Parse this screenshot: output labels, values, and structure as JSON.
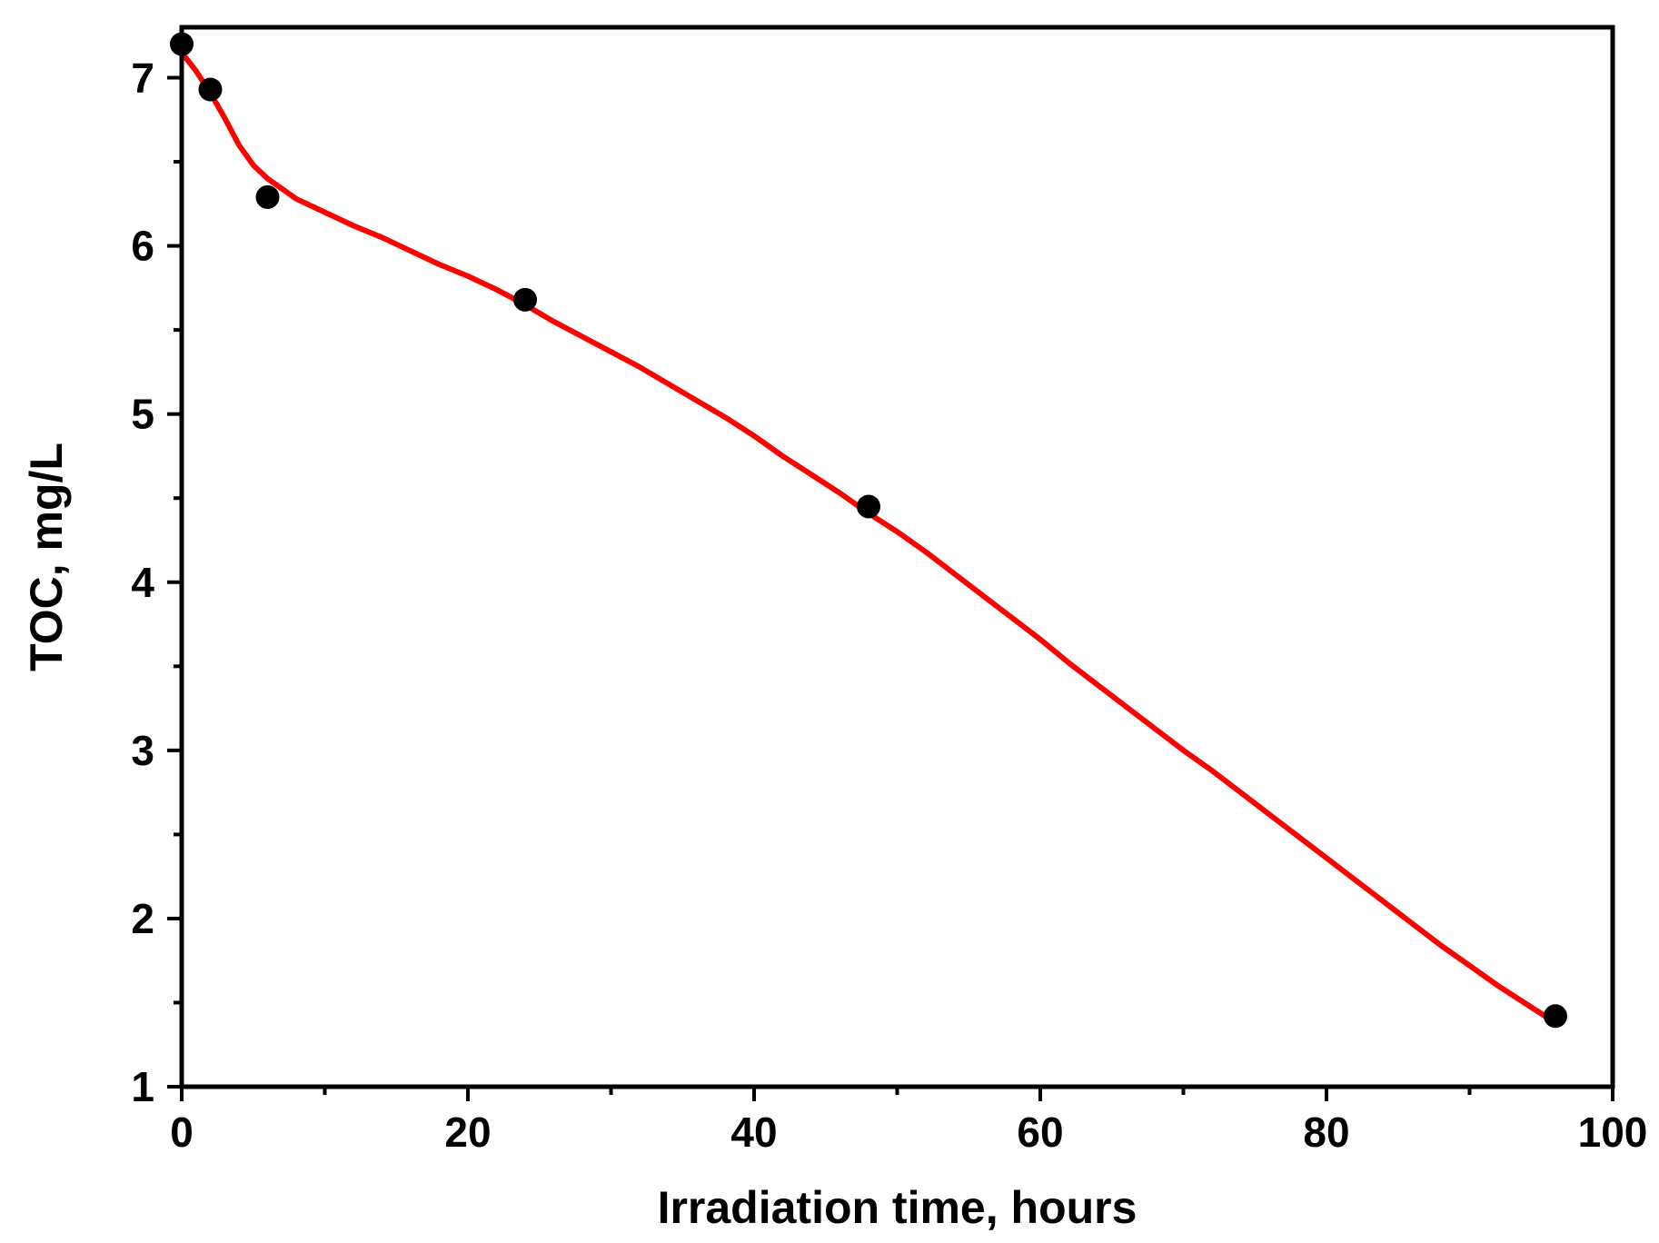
{
  "chart_data": {
    "type": "scatter",
    "title": "",
    "xlabel": "Irradiation time, hours",
    "ylabel": "TOC, mg/L",
    "xlim": [
      0,
      100
    ],
    "ylim": [
      1,
      7.3
    ],
    "x_ticks": [
      0,
      20,
      40,
      60,
      80,
      100
    ],
    "x_tick_labels": [
      "0",
      "20",
      "40",
      "60",
      "80",
      "100"
    ],
    "x_minor_ticks": [
      10,
      30,
      50,
      70,
      90
    ],
    "y_ticks": [
      1,
      2,
      3,
      4,
      5,
      6,
      7
    ],
    "y_tick_labels": [
      "1",
      "2",
      "3",
      "4",
      "5",
      "6",
      "7"
    ],
    "y_minor_ticks": [
      1.5,
      2.5,
      3.5,
      4.5,
      5.5,
      6.5
    ],
    "grid": false,
    "legend": "none",
    "series": [
      {
        "kind": "points",
        "color": "#000000",
        "x": [
          0,
          2,
          6,
          24,
          48,
          96
        ],
        "y": [
          7.2,
          6.93,
          6.29,
          5.68,
          4.45,
          1.42
        ]
      },
      {
        "kind": "fit-line",
        "color": "#ff0000",
        "x": [
          0,
          1,
          2,
          3,
          4,
          5,
          6,
          7,
          8,
          10,
          12,
          14,
          16,
          18,
          20,
          22,
          24,
          26,
          28,
          30,
          32,
          34,
          36,
          38,
          40,
          42,
          44,
          46,
          48,
          50,
          52,
          54,
          56,
          58,
          60,
          62,
          64,
          66,
          68,
          70,
          72,
          74,
          76,
          78,
          80,
          82,
          84,
          86,
          88,
          90,
          92,
          94,
          96
        ],
        "y": [
          7.15,
          7.04,
          6.91,
          6.76,
          6.6,
          6.48,
          6.4,
          6.34,
          6.28,
          6.2,
          6.12,
          6.05,
          5.97,
          5.89,
          5.82,
          5.74,
          5.65,
          5.55,
          5.46,
          5.37,
          5.28,
          5.18,
          5.08,
          4.98,
          4.87,
          4.75,
          4.64,
          4.53,
          4.41,
          4.3,
          4.18,
          4.05,
          3.92,
          3.79,
          3.66,
          3.52,
          3.39,
          3.26,
          3.13,
          3.0,
          2.88,
          2.75,
          2.62,
          2.49,
          2.36,
          2.23,
          2.1,
          1.97,
          1.84,
          1.72,
          1.6,
          1.49,
          1.38
        ]
      }
    ]
  }
}
